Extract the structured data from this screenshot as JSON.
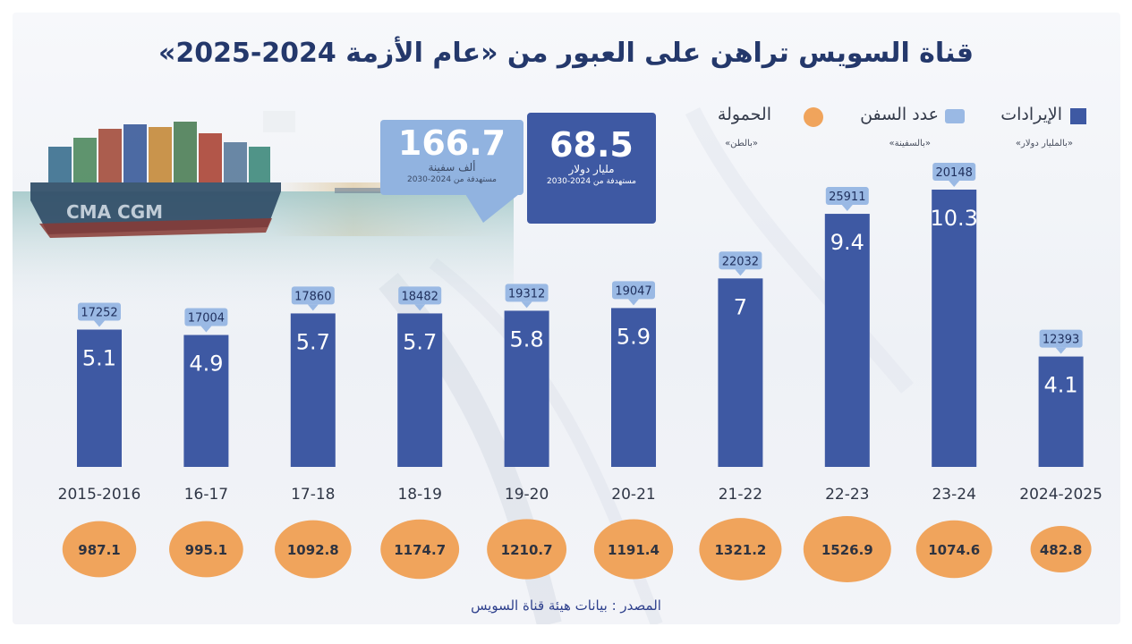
{
  "title": "قناة السويس تراهن على العبور من «عام الأزمة 2024-2025»",
  "legend": {
    "revenue": {
      "label": "الإيرادات",
      "unit": "«بالمليار دولار»"
    },
    "ships": {
      "label": "عدد السفن",
      "unit": "«بالسفينة»"
    },
    "tonnage": {
      "label": "الحمولة",
      "unit": "«بالطن»"
    }
  },
  "callouts": {
    "revenue_target": {
      "value": "68.5",
      "unit": "مليار دولار",
      "note": "مستهدفة من 2024-2030"
    },
    "ships_target": {
      "value": "166.7",
      "unit": "ألف سفينة",
      "note": "مستهدفة من 2024-2030"
    }
  },
  "source": "المصدر : بيانات هيئة قناة السويس",
  "colors": {
    "bar": "#3e59a3",
    "bubble": "#9ab9e4",
    "circle": "#f0a45c",
    "title": "#24386b"
  },
  "chart_data": {
    "type": "bar",
    "title": "قناة السويس تراهن على العبور من «عام الأزمة 2024-2025»",
    "categories": [
      "2015-2016",
      "16-17",
      "17-18",
      "18-19",
      "19-20",
      "20-21",
      "21-22",
      "22-23",
      "23-24",
      "2024-2025"
    ],
    "series": [
      {
        "name": "الإيرادات",
        "unit": "«بالمليار دولار»",
        "values": [
          5.1,
          4.9,
          5.7,
          5.7,
          5.8,
          5.9,
          7,
          9.4,
          10.3,
          4.1
        ]
      },
      {
        "name": "عدد السفن",
        "unit": "«بالسفينة»",
        "values": [
          17252,
          17004,
          17860,
          18482,
          19312,
          19047,
          22032,
          25911,
          20148,
          12393
        ]
      },
      {
        "name": "الحمولة",
        "unit": "«بالطن»",
        "values": [
          987.1,
          995.1,
          1092.8,
          1174.7,
          1210.7,
          1191.4,
          1321.2,
          1526.9,
          1074.6,
          482.8
        ]
      }
    ],
    "xlabel": "",
    "ylabel": "",
    "ylim": [
      0,
      11.5
    ]
  }
}
